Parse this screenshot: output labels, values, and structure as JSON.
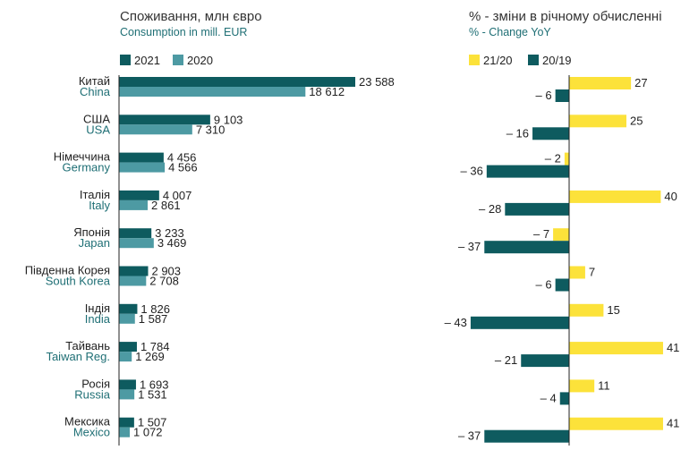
{
  "colors": {
    "dark_teal": "#0e5b5f",
    "light_teal": "#4d9aa3",
    "yellow": "#fce23a",
    "axis": "#222222",
    "english_label": "#1f6f75"
  },
  "chart_data": [
    {
      "type": "bar",
      "orientation": "horizontal",
      "title": "Споживання, млн євро",
      "subtitle": "Consumption in mill. EUR",
      "legend": [
        "2021",
        "2020"
      ],
      "legend_position": "top-left",
      "categories": [
        {
          "uk": "Китай",
          "en": "China"
        },
        {
          "uk": "США",
          "en": "USA"
        },
        {
          "uk": "Німеччина",
          "en": "Germany"
        },
        {
          "uk": "Італія",
          "en": "Italy"
        },
        {
          "uk": "Японія",
          "en": "Japan"
        },
        {
          "uk": "Південна Корея",
          "en": "South Korea"
        },
        {
          "uk": "Індія",
          "en": "India"
        },
        {
          "uk": "Тайвань",
          "en": "Taiwan Reg."
        },
        {
          "uk": "Росія",
          "en": "Russia"
        },
        {
          "uk": "Мексика",
          "en": "Mexico"
        }
      ],
      "series": [
        {
          "name": "2021",
          "values": [
            23588,
            9103,
            4456,
            4007,
            3233,
            2903,
            1826,
            1784,
            1693,
            1507
          ],
          "labels": [
            "23 588",
            "9 103",
            "4 456",
            "4 007",
            "3 233",
            "2 903",
            "1 826",
            "1 784",
            "1 693",
            "1 507"
          ]
        },
        {
          "name": "2020",
          "values": [
            18612,
            7310,
            4566,
            2861,
            3469,
            2708,
            1587,
            1269,
            1531,
            1072
          ],
          "labels": [
            "18 612",
            "7 310",
            "4 566",
            "2 861",
            "3 469",
            "2 708",
            "1 587",
            "1 269",
            "1 531",
            "1 072"
          ]
        }
      ],
      "xlim": [
        0,
        23588
      ],
      "grid": false
    },
    {
      "type": "bar",
      "orientation": "horizontal",
      "title": "% - зміни в річному обчисленні",
      "subtitle": "% - Change YoY",
      "legend": [
        "21/20",
        "20/19"
      ],
      "legend_position": "top-left",
      "categories": [
        "China",
        "USA",
        "Germany",
        "Italy",
        "Japan",
        "South Korea",
        "India",
        "Taiwan Reg.",
        "Russia",
        "Mexico"
      ],
      "series": [
        {
          "name": "21/20",
          "values": [
            27,
            25,
            -2,
            40,
            -7,
            7,
            15,
            41,
            11,
            41
          ],
          "labels": [
            "27",
            "25",
            "– 2",
            "40",
            "– 7",
            "7",
            "15",
            "41",
            "11",
            "41"
          ]
        },
        {
          "name": "20/19",
          "values": [
            -6,
            -16,
            -36,
            -28,
            -37,
            -6,
            -43,
            -21,
            -4,
            -37
          ],
          "labels": [
            "– 6",
            "– 16",
            "– 36",
            "– 28",
            "– 37",
            "– 6",
            "– 43",
            "– 21",
            "– 4",
            "– 37"
          ]
        }
      ],
      "xlim": [
        -43,
        41
      ],
      "zero_line": true,
      "grid": false
    }
  ]
}
